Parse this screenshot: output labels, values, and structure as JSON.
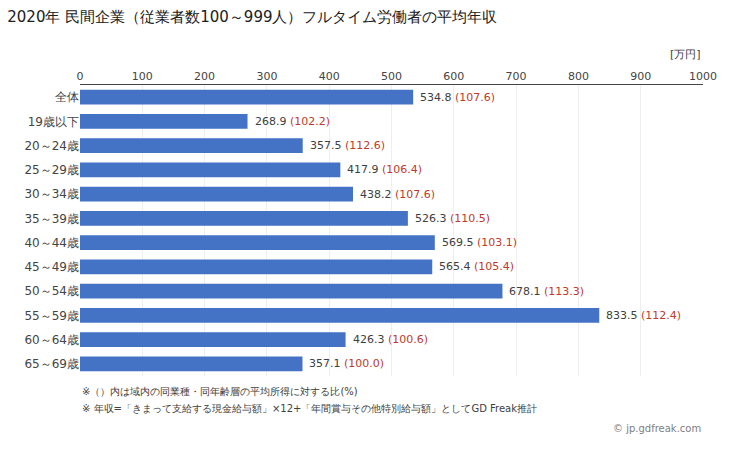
{
  "chart_data": {
    "type": "bar",
    "orientation": "horizontal",
    "title": "2020年 民間企業（従業者数100～999人）フルタイム労働者の平均年収",
    "xlabel": "[万円]",
    "categories": [
      "全体",
      "19歳以下",
      "20～24歳",
      "25～29歳",
      "30～34歳",
      "35～39歳",
      "40～44歳",
      "45～49歳",
      "50～54歳",
      "55～59歳",
      "60～64歳",
      "65～69歳"
    ],
    "values": [
      534.8,
      268.9,
      357.5,
      417.9,
      438.2,
      526.3,
      569.5,
      565.4,
      678.1,
      833.5,
      426.3,
      357.1
    ],
    "ratios": [
      107.6,
      102.2,
      112.6,
      106.4,
      107.6,
      110.5,
      103.1,
      105.4,
      113.3,
      112.4,
      100.6,
      100.0
    ],
    "ratio_labels": [
      "(107.6)",
      "(102.2)",
      "(112.6)",
      "(106.4)",
      "(107.6)",
      "(110.5)",
      "(103.1)",
      "(105.4)",
      "(113.3)",
      "(112.4)",
      "(100.6)",
      "(100.0)"
    ],
    "color": "#4472c4",
    "data_labels": true,
    "grid": true,
    "xlim": [
      0,
      1000
    ],
    "xticks": [
      0,
      100,
      200,
      300,
      400,
      500,
      600,
      700,
      800,
      900,
      1000
    ],
    "annotations": [
      "※（）内は域内の同業種・同年齢層の平均所得に対する比(%)",
      "※ 年収=「きまって支給する現金給与額」×12+「年間賞与その他特別給与額」としてGD Freak推計",
      "© jp.gdfreak.com"
    ]
  }
}
